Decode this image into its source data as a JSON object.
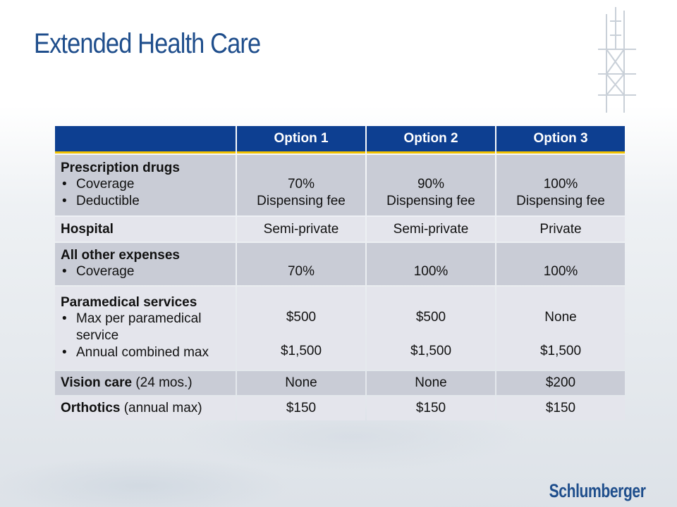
{
  "slide": {
    "title": "Extended Health Care",
    "logo": "Schlumberger"
  },
  "table": {
    "headers": [
      "",
      "Option 1",
      "Option 2",
      "Option 3"
    ],
    "rows": [
      {
        "label": "Prescription drugs",
        "note": "",
        "bullets": [
          "Coverage",
          "Deductible"
        ],
        "values": [
          [
            "70%",
            "Dispensing fee"
          ],
          [
            "90%",
            "Dispensing fee"
          ],
          [
            "100%",
            "Dispensing fee"
          ]
        ]
      },
      {
        "label": "Hospital",
        "note": "",
        "bullets": [],
        "values": [
          [
            "Semi-private"
          ],
          [
            "Semi-private"
          ],
          [
            "Private"
          ]
        ]
      },
      {
        "label": "All other expenses",
        "note": "",
        "bullets": [
          "Coverage"
        ],
        "values": [
          [
            "70%"
          ],
          [
            "100%"
          ],
          [
            "100%"
          ]
        ]
      },
      {
        "label": "Paramedical services",
        "note": "",
        "bullets": [
          "Max per paramedical service",
          "Annual combined max"
        ],
        "values": [
          [
            "$500",
            "$1,500"
          ],
          [
            "$500",
            "$1,500"
          ],
          [
            "None",
            "$1,500"
          ]
        ]
      },
      {
        "label": "Vision care",
        "note": "(24 mos.)",
        "bullets": [],
        "values": [
          [
            "None"
          ],
          [
            "None"
          ],
          [
            "$200"
          ]
        ]
      },
      {
        "label": "Orthotics",
        "note": "(annual max)",
        "bullets": [],
        "values": [
          [
            "$150"
          ],
          [
            "$150"
          ],
          [
            "$150"
          ]
        ]
      }
    ]
  },
  "colors": {
    "title": "#1f4e8c",
    "header_bg": "#0d3f91",
    "header_rule": "#f2c200",
    "row_dark": "#c9ccd6",
    "row_light": "#e4e5ec"
  }
}
